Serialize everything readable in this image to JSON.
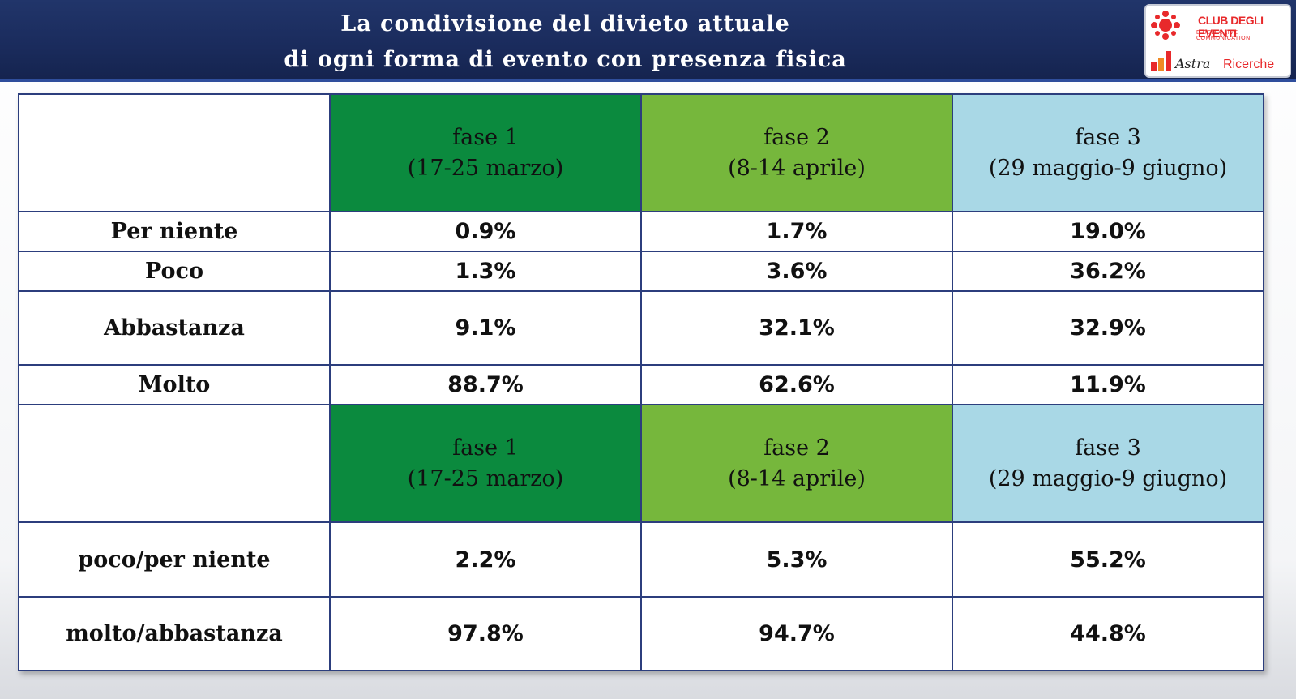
{
  "title": {
    "line1": "La condivisione del divieto attuale",
    "line2": "di ogni forma di evento con presenza fisica"
  },
  "logo": {
    "club": "CLUB DEGLI EVENTI",
    "sub": "E DELLA LIVE COMMUNICATION",
    "astra": "Astra",
    "ricerche": "Ricerche",
    "icon_names": [
      "club-logo-icon",
      "bar-chart-logo-icon"
    ]
  },
  "colors": {
    "fase1": "#0b8a3e",
    "fase2": "#76b73c",
    "fase3": "#a9d8e6",
    "title_bg": "#1a2b5c",
    "brand_red": "#e8292b"
  },
  "chart_data": {
    "type": "table",
    "title": "La condivisione del divieto attuale di ogni forma di evento con presenza fisica",
    "columns": [
      {
        "name": "fase 1",
        "period": "(17-25 marzo)"
      },
      {
        "name": "fase 2",
        "period": "(8-14 aprile)"
      },
      {
        "name": "fase 3",
        "period": "(29 maggio-9 giugno)"
      }
    ],
    "table1": {
      "rows": [
        {
          "label": "Per niente",
          "values": [
            "0.9%",
            "1.7%",
            "19.0%"
          ]
        },
        {
          "label": "Poco",
          "values": [
            "1.3%",
            "3.6%",
            "36.2%"
          ]
        },
        {
          "label": "Abbastanza",
          "values": [
            "9.1%",
            "32.1%",
            "32.9%"
          ]
        },
        {
          "label": "Molto",
          "values": [
            "88.7%",
            "62.6%",
            "11.9%"
          ]
        }
      ]
    },
    "table2": {
      "rows": [
        {
          "label": "poco/per niente",
          "values": [
            "2.2%",
            "5.3%",
            "55.2%"
          ]
        },
        {
          "label": "molto/abbastanza",
          "values": [
            "97.8%",
            "94.7%",
            "44.8%"
          ]
        }
      ]
    }
  }
}
